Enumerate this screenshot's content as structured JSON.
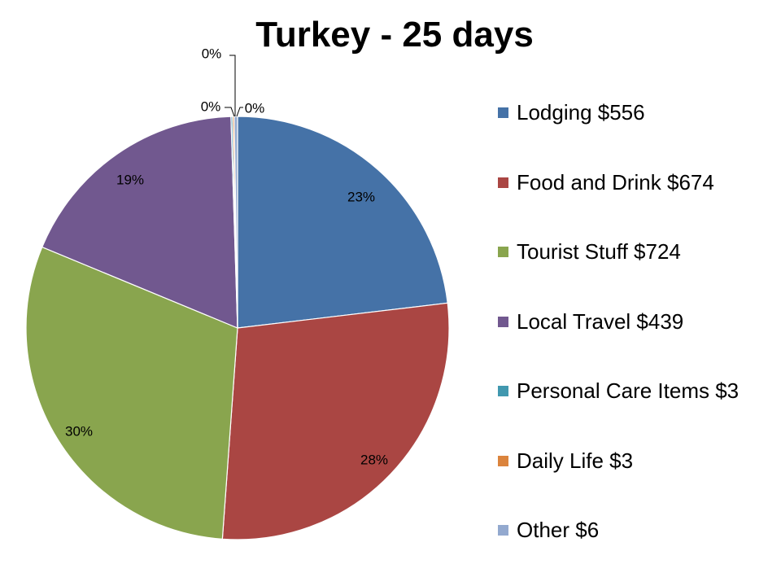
{
  "chart_data": {
    "type": "pie",
    "title": "Turkey - 25 days",
    "categories": [
      "Lodging $556",
      "Food and Drink $674",
      "Tourist Stuff $724",
      "Local Travel $439",
      "Personal Care Items $3",
      "Daily Life $3",
      "Other $6"
    ],
    "values": [
      556,
      674,
      724,
      439,
      3,
      3,
      6
    ],
    "percent_labels": [
      "23%",
      "28%",
      "30%",
      "19%",
      "0%",
      "0%",
      "0%"
    ],
    "colors": [
      "#4572A7",
      "#AA4643",
      "#89A54E",
      "#71588F",
      "#4198AF",
      "#DB843D",
      "#93A9CF"
    ],
    "legend_position": "right",
    "start_angle": "12 o'clock",
    "direction": "clockwise"
  }
}
